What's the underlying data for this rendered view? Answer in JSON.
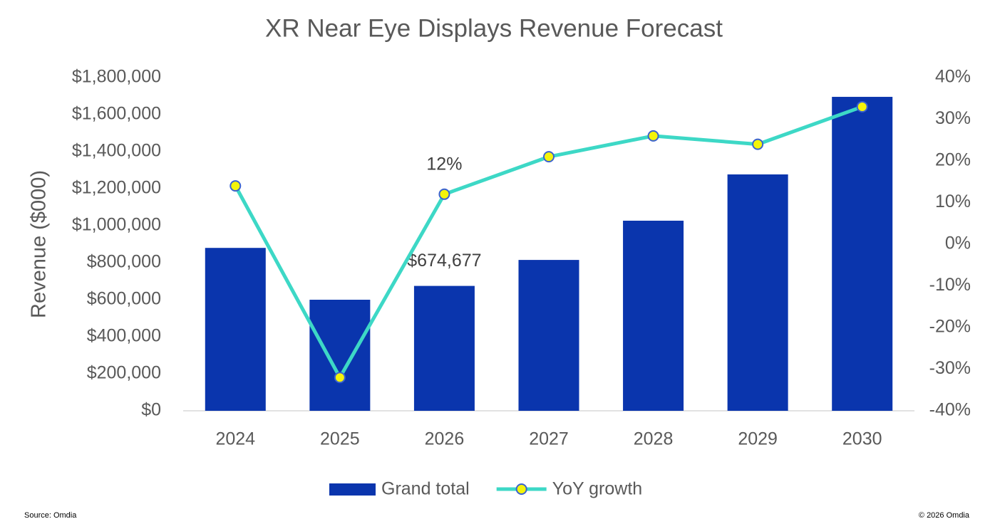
{
  "chart_data": {
    "type": "bar-line",
    "title": "XR Near Eye Displays Revenue Forecast",
    "y_label": "Revenue ($000)",
    "categories": [
      "2024",
      "2025",
      "2026",
      "2027",
      "2028",
      "2029",
      "2030"
    ],
    "series": [
      {
        "name": "Grand total",
        "type": "bar",
        "color": "#0a35ad",
        "values": [
          880000,
          600000,
          674677,
          815000,
          1027000,
          1277000,
          1696000
        ],
        "value_labels": [
          null,
          null,
          "$674,677",
          null,
          null,
          null,
          null
        ]
      },
      {
        "name": "YoY growth",
        "type": "line",
        "axis": "y2",
        "color": "#3dd8c6",
        "marker_color": "#f4f40a",
        "values": [
          14,
          -32,
          12,
          21,
          26,
          24,
          33
        ],
        "value_labels": [
          null,
          null,
          "12%",
          null,
          null,
          null,
          null
        ]
      }
    ],
    "ylim": [
      0,
      1800000
    ],
    "yticks": [
      {
        "value": 0,
        "label": "$0"
      },
      {
        "value": 200000,
        "label": "$200,000"
      },
      {
        "value": 400000,
        "label": "$400,000"
      },
      {
        "value": 600000,
        "label": "$600,000"
      },
      {
        "value": 800000,
        "label": "$800,000"
      },
      {
        "value": 1000000,
        "label": "$1,000,000"
      },
      {
        "value": 1200000,
        "label": "$1,200,000"
      },
      {
        "value": 1400000,
        "label": "$1,400,000"
      },
      {
        "value": 1600000,
        "label": "$1,600,000"
      },
      {
        "value": 1800000,
        "label": "$1,800,000"
      }
    ],
    "y2lim": [
      -40,
      40
    ],
    "y2ticks": [
      {
        "value": -40,
        "label": "-40%"
      },
      {
        "value": -30,
        "label": "-30%"
      },
      {
        "value": -20,
        "label": "-20%"
      },
      {
        "value": -10,
        "label": "-10%"
      },
      {
        "value": 0,
        "label": "0%"
      },
      {
        "value": 10,
        "label": "10%"
      },
      {
        "value": 20,
        "label": "20%"
      },
      {
        "value": 30,
        "label": "30%"
      },
      {
        "value": 40,
        "label": "40%"
      }
    ],
    "grid": false,
    "legend": "bottom",
    "source": "Source: Omdia",
    "copyright": "© 2026 Omdia"
  }
}
